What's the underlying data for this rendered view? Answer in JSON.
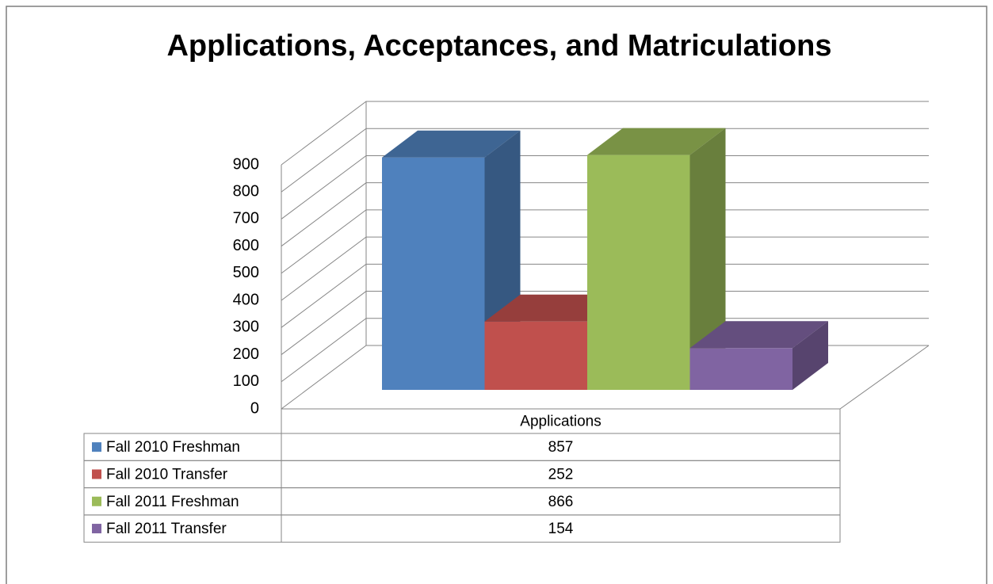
{
  "chart_data": {
    "type": "bar3d",
    "title": "Applications, Acceptances, and Matriculations",
    "categories": [
      "Applications"
    ],
    "series": [
      {
        "name": "Fall 2010 Freshman",
        "color": "#4f81bd",
        "values": [
          857
        ]
      },
      {
        "name": "Fall 2010 Transfer",
        "color": "#c0504d",
        "values": [
          252
        ]
      },
      {
        "name": "Fall 2011 Freshman",
        "color": "#9bbb59",
        "values": [
          866
        ]
      },
      {
        "name": "Fall 2011 Transfer",
        "color": "#8064a2",
        "values": [
          154
        ]
      }
    ],
    "ylim": [
      0,
      900
    ],
    "yticks": [
      0,
      100,
      200,
      300,
      400,
      500,
      600,
      700,
      800,
      900
    ],
    "grid": true,
    "legend": "table"
  }
}
